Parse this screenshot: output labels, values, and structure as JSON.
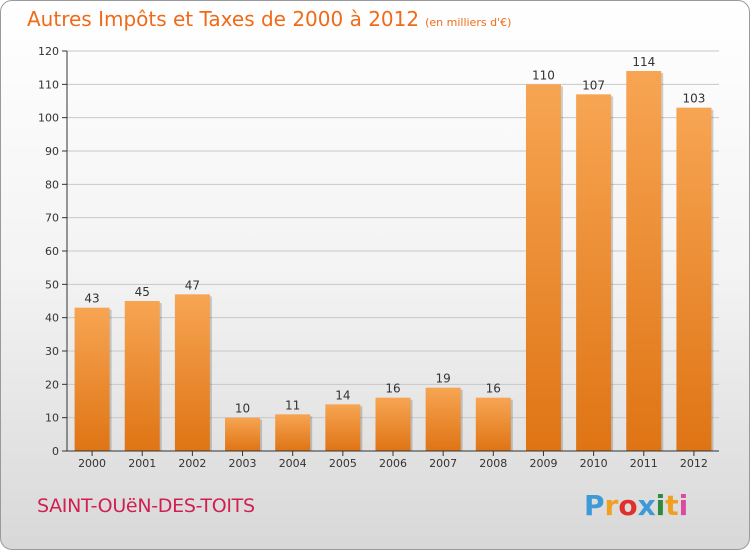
{
  "chart_data": {
    "type": "bar",
    "title": "Autres Impôts et Taxes de 2000 à 2012",
    "subtitle": "(en milliers d'€)",
    "categories": [
      "2000",
      "2001",
      "2002",
      "2003",
      "2004",
      "2005",
      "2006",
      "2007",
      "2008",
      "2009",
      "2010",
      "2011",
      "2012"
    ],
    "values": [
      43,
      45,
      47,
      10,
      11,
      14,
      16,
      19,
      16,
      110,
      107,
      114,
      103
    ],
    "ylim": [
      0,
      120
    ],
    "yticks": [
      0,
      10,
      20,
      30,
      40,
      50,
      60,
      70,
      80,
      90,
      100,
      110,
      120
    ],
    "grid": true,
    "bar_color": "#f0933d"
  },
  "footer": {
    "commune": "SAINT-OUëN-DES-TOITS",
    "logo_letters": [
      "P",
      "r",
      "o",
      "x",
      "i",
      "t",
      "i"
    ],
    "logo_colors": [
      "#3d9ad6",
      "#f0a020",
      "#e0302a",
      "#3d9ad6",
      "#2e8b3a",
      "#f0a020",
      "#d94aa0"
    ]
  }
}
